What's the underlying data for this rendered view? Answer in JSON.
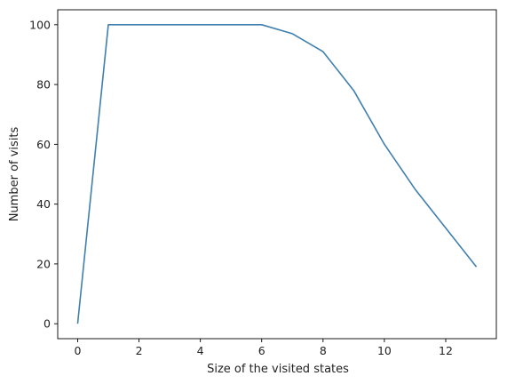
{
  "chart_data": {
    "type": "line",
    "title": "",
    "xlabel": "Size of the visited states",
    "ylabel": "Number of visits",
    "xlim": [
      -0.65,
      13.65
    ],
    "ylim": [
      -5,
      105
    ],
    "xticks": [
      0,
      2,
      4,
      6,
      8,
      10,
      12
    ],
    "yticks": [
      0,
      20,
      40,
      60,
      80,
      100
    ],
    "grid": false,
    "legend": "none",
    "series": [
      {
        "color": "#3f7fae",
        "x": [
          0,
          1,
          2,
          3,
          4,
          5,
          6,
          7,
          8,
          9,
          10,
          11,
          12,
          13
        ],
        "y": [
          0,
          100,
          100,
          100,
          100,
          100,
          100,
          97,
          91,
          78,
          60,
          45,
          32,
          19
        ]
      }
    ]
  }
}
